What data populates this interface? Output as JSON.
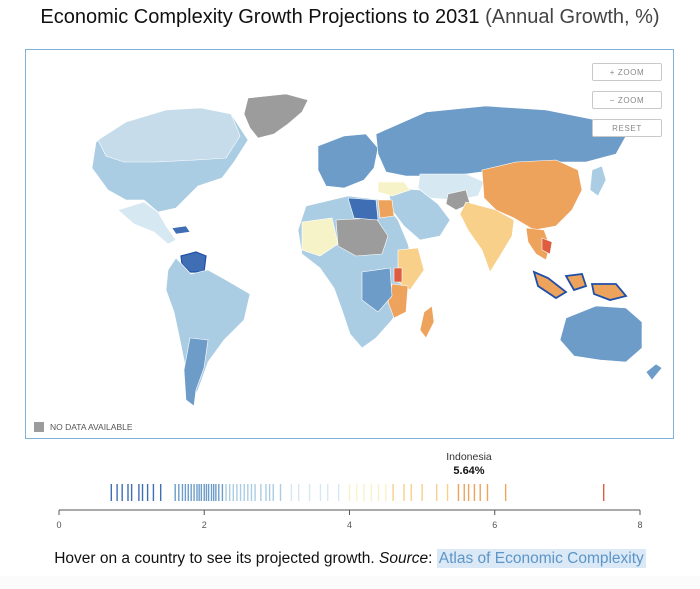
{
  "header": {
    "title_main": "Economic Complexity Growth Projections to 2031",
    "title_sub": "(Annual Growth, %)"
  },
  "map": {
    "controls": {
      "zoom_in": "+ ZOOM",
      "zoom_out": "− ZOOM",
      "reset": "RESET"
    },
    "legend_no_data": "NO DATA AVAILABLE",
    "colors": {
      "no_data": "#9c9c9c",
      "low_dark": "#3f6eb5",
      "low": "#6d9cc9",
      "mid_low": "#aacde3",
      "mid": "#d6e8f1",
      "neutral": "#f7f3c8",
      "mid_high": "#f8d08a",
      "high": "#eea35d",
      "very_high": "#de5c3f",
      "highlight_outline": "#1f4fa8"
    }
  },
  "hover": {
    "country": "Indonesia",
    "value": "5.64%"
  },
  "growth_strip": {
    "axis_min": 0,
    "axis_max": 8,
    "ticks": [
      "0",
      "2",
      "4",
      "6",
      "8"
    ],
    "values": [
      0.72,
      0.8,
      0.87,
      0.95,
      1.0,
      1.1,
      1.15,
      1.22,
      1.3,
      1.4,
      1.6,
      1.65,
      1.7,
      1.74,
      1.78,
      1.82,
      1.86,
      1.9,
      1.93,
      1.96,
      2.0,
      2.03,
      2.06,
      2.1,
      2.13,
      2.16,
      2.2,
      2.25,
      2.3,
      2.35,
      2.4,
      2.45,
      2.5,
      2.55,
      2.6,
      2.65,
      2.7,
      2.78,
      2.85,
      2.9,
      2.95,
      3.05,
      3.2,
      3.3,
      3.45,
      3.6,
      3.7,
      3.85,
      4.0,
      4.1,
      4.2,
      4.3,
      4.4,
      4.5,
      4.6,
      4.75,
      4.85,
      5.0,
      5.2,
      5.35,
      5.5,
      5.58,
      5.64,
      5.72,
      5.8,
      5.9,
      6.15,
      7.5
    ]
  },
  "caption": {
    "text": "Hover on a country to see its projected growth.",
    "source_label": "Source",
    "source_sep": ":",
    "source_link": "Atlas of Economic Complexity"
  }
}
